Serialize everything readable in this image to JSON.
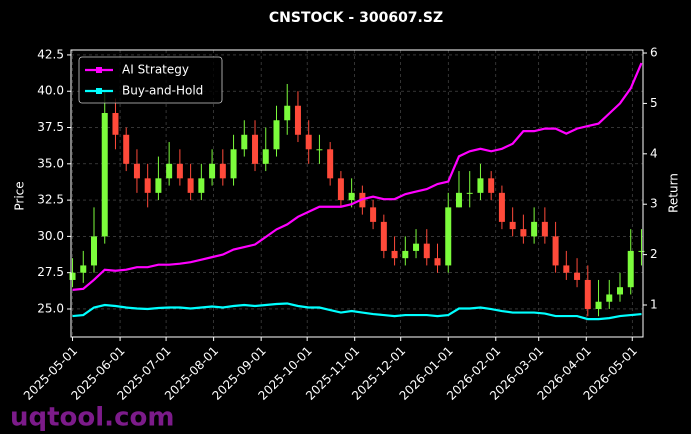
{
  "chart_data": {
    "type": "candlestick",
    "title": "CNSTOCK - 300607.SZ",
    "ylabel": "Price",
    "y2label": "Return",
    "watermark": "uqtool.com",
    "x": [
      "2025-05-01",
      "2025-05-08",
      "2025-05-15",
      "2025-05-22",
      "2025-05-29",
      "2025-06-05",
      "2025-06-12",
      "2025-06-19",
      "2025-06-26",
      "2025-07-03",
      "2025-07-10",
      "2025-07-17",
      "2025-07-24",
      "2025-07-31",
      "2025-08-07",
      "2025-08-14",
      "2025-08-21",
      "2025-08-28",
      "2025-09-04",
      "2025-09-11",
      "2025-09-18",
      "2025-09-25",
      "2025-10-02",
      "2025-10-09",
      "2025-10-16",
      "2025-10-23",
      "2025-10-30",
      "2025-11-06",
      "2025-11-13",
      "2025-11-20",
      "2025-11-27",
      "2025-12-04",
      "2025-12-11",
      "2025-12-18",
      "2025-12-25",
      "2026-01-01",
      "2026-01-08",
      "2026-01-15",
      "2026-01-22",
      "2026-01-29",
      "2026-02-05",
      "2026-02-12",
      "2026-02-19",
      "2026-02-26",
      "2026-03-05",
      "2026-03-12",
      "2026-03-19",
      "2026-03-26",
      "2026-04-02",
      "2026-04-09",
      "2026-04-16",
      "2026-04-23",
      "2026-04-30",
      "2026-05-07"
    ],
    "open": [
      27,
      27.5,
      28,
      30,
      38.5,
      37,
      35,
      34,
      33,
      34,
      35,
      34,
      33,
      34,
      35,
      34,
      36,
      37,
      35,
      36,
      38,
      39,
      37,
      36,
      36,
      34,
      32.5,
      33,
      32,
      31,
      29,
      28.5,
      29,
      29.5,
      28.5,
      28,
      32,
      33,
      33,
      34,
      33,
      31,
      30.5,
      30,
      31,
      30,
      28,
      27.5,
      27,
      25,
      25.5,
      26,
      26.5,
      29
    ],
    "high": [
      28.5,
      29,
      32,
      40,
      39.5,
      37.5,
      36,
      35,
      35.5,
      36.5,
      36,
      35,
      35,
      36,
      36,
      37,
      38,
      38,
      37.5,
      39,
      40.5,
      40,
      38,
      37,
      36.5,
      34.5,
      34,
      33.5,
      32.5,
      31.5,
      30,
      30,
      30.5,
      30.5,
      29.5,
      33,
      34.5,
      34.5,
      35,
      34.5,
      33.5,
      32,
      31.5,
      32,
      32,
      31,
      29,
      28.5,
      28,
      27,
      27,
      27.5,
      30.5,
      30.5
    ],
    "low": [
      26.5,
      26.8,
      27.5,
      29.5,
      36,
      34.5,
      33,
      32,
      32.5,
      33.5,
      33.5,
      32.5,
      32.5,
      33.5,
      33.5,
      33.5,
      35.5,
      34.5,
      34.5,
      35.5,
      37,
      36.5,
      35,
      35,
      33.5,
      32,
      32,
      31.5,
      30.5,
      28.5,
      28,
      28,
      28.5,
      28,
      27.5,
      27.5,
      32,
      32,
      32.5,
      32.5,
      30.5,
      30,
      29.5,
      29.5,
      29.5,
      27.5,
      27,
      26.5,
      24.5,
      24.5,
      25,
      25.5,
      26,
      28
    ],
    "close": [
      27.5,
      28,
      30,
      38.5,
      37,
      35,
      34,
      33,
      34,
      35,
      34,
      33,
      34,
      35,
      34,
      36,
      37,
      35,
      36,
      38,
      39,
      37,
      36,
      36,
      34,
      32.5,
      33,
      32,
      31,
      29,
      28.5,
      29,
      29.5,
      28.5,
      28,
      32,
      33,
      33,
      34,
      33,
      31,
      30.5,
      30,
      31,
      30,
      28,
      27.5,
      27,
      25,
      25.5,
      26,
      26.5,
      29,
      29
    ],
    "up_color": "#7cfc3c",
    "down_color": "#ff4a3a",
    "series": [
      {
        "name": "AI Strategy",
        "color": "#ff00ff",
        "axis": "y2",
        "values": [
          1.3,
          1.32,
          1.5,
          1.7,
          1.68,
          1.7,
          1.75,
          1.75,
          1.8,
          1.8,
          1.82,
          1.85,
          1.9,
          1.95,
          2.0,
          2.1,
          2.15,
          2.2,
          2.35,
          2.5,
          2.6,
          2.75,
          2.85,
          2.95,
          2.95,
          2.95,
          3.0,
          3.1,
          3.15,
          3.1,
          3.1,
          3.2,
          3.25,
          3.3,
          3.4,
          3.45,
          3.95,
          4.05,
          4.1,
          4.05,
          4.1,
          4.2,
          4.45,
          4.45,
          4.5,
          4.5,
          4.4,
          4.5,
          4.55,
          4.6,
          4.8,
          5.0,
          5.3,
          5.8
        ]
      },
      {
        "name": "Buy-and-Hold",
        "color": "#00ffff",
        "axis": "y2",
        "values": [
          0.78,
          0.8,
          0.95,
          1.0,
          0.98,
          0.95,
          0.93,
          0.92,
          0.94,
          0.95,
          0.95,
          0.93,
          0.95,
          0.97,
          0.95,
          0.98,
          1.0,
          0.98,
          1.0,
          1.02,
          1.03,
          0.98,
          0.95,
          0.95,
          0.9,
          0.85,
          0.88,
          0.85,
          0.82,
          0.8,
          0.78,
          0.8,
          0.8,
          0.8,
          0.78,
          0.8,
          0.93,
          0.93,
          0.95,
          0.92,
          0.88,
          0.85,
          0.85,
          0.85,
          0.83,
          0.78,
          0.78,
          0.78,
          0.72,
          0.72,
          0.74,
          0.78,
          0.8,
          0.82
        ]
      }
    ],
    "xlim": [
      "2025-04-30",
      "2026-05-08"
    ],
    "xticks": [
      "2025-05-01",
      "2025-06-01",
      "2025-07-01",
      "2025-08-01",
      "2025-09-01",
      "2025-10-01",
      "2025-11-01",
      "2025-12-01",
      "2026-01-01",
      "2026-02-01",
      "2026-03-01",
      "2026-04-01",
      "2026-05-01"
    ],
    "ylim": [
      23.07,
      42.84
    ],
    "yticks": [
      25.0,
      27.5,
      30.0,
      32.5,
      35.0,
      37.5,
      40.0,
      42.5
    ],
    "y2lim": [
      0.365,
      6.06
    ],
    "y2ticks": [
      1,
      2,
      3,
      4,
      5,
      6
    ],
    "grid": true,
    "legend": "upper-left"
  }
}
